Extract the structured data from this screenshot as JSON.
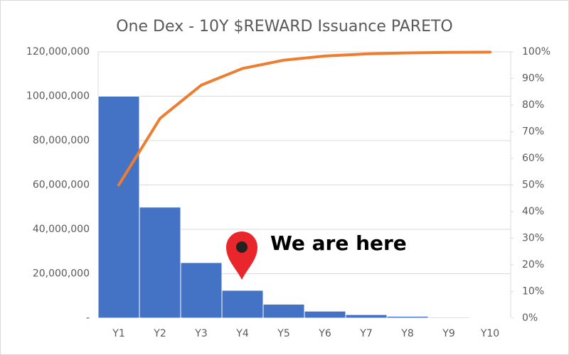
{
  "chart_data": {
    "type": "bar",
    "title": "One Dex - 10Y $REWARD Issuance PARETO",
    "annotation": "We are here",
    "categories": [
      "Y1",
      "Y2",
      "Y3",
      "Y4",
      "Y5",
      "Y6",
      "Y7",
      "Y8",
      "Y9",
      "Y10"
    ],
    "series": [
      {
        "type": "bar",
        "color": "#4472c4",
        "values": [
          100000000,
          50000000,
          25000000,
          12500000,
          6250000,
          3125000,
          1562500,
          781250,
          390625,
          195312.5
        ]
      },
      {
        "type": "line",
        "axis": "y2",
        "color": "#ed7d31",
        "values": [
          50,
          75,
          87.5,
          93.75,
          96.875,
          98.4375,
          99.21875,
          99.609375,
          99.8046875,
          99.90234375
        ]
      }
    ],
    "ylim": [
      0,
      120000000
    ],
    "yticks": [
      {
        "value": 0,
        "label": "-"
      },
      {
        "value": 20000000,
        "label": "20,000,000"
      },
      {
        "value": 40000000,
        "label": "40,000,000"
      },
      {
        "value": 60000000,
        "label": "60,000,000"
      },
      {
        "value": 80000000,
        "label": "80,000,000"
      },
      {
        "value": 100000000,
        "label": "100,000,000"
      },
      {
        "value": 120000000,
        "label": "120,000,000"
      }
    ],
    "y2lim": [
      0,
      100
    ],
    "y2ticks": [
      {
        "value": 0,
        "label": "0%"
      },
      {
        "value": 10,
        "label": "10%"
      },
      {
        "value": 20,
        "label": "20%"
      },
      {
        "value": 30,
        "label": "30%"
      },
      {
        "value": 40,
        "label": "40%"
      },
      {
        "value": 50,
        "label": "50%"
      },
      {
        "value": 60,
        "label": "60%"
      },
      {
        "value": 70,
        "label": "70%"
      },
      {
        "value": 80,
        "label": "80%"
      },
      {
        "value": 90,
        "label": "90%"
      },
      {
        "value": 100,
        "label": "100%"
      }
    ],
    "grid": true
  }
}
